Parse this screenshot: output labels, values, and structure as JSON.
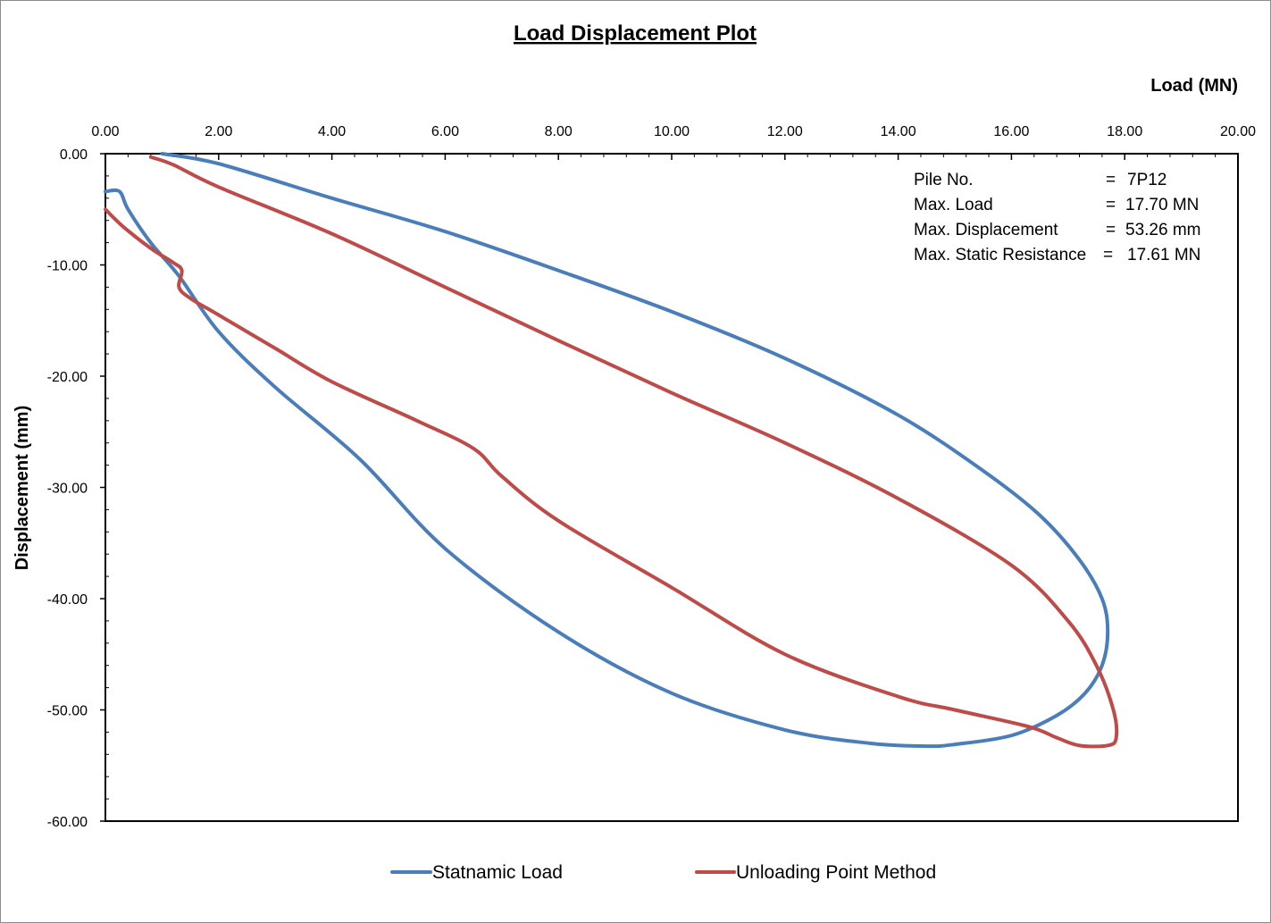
{
  "chart_data": {
    "type": "line",
    "title": "Load Displacement Plot",
    "xlabel": "Load (MN)",
    "ylabel": "Displacement (mm)",
    "xlim": [
      0,
      20
    ],
    "ylim": [
      -60,
      0
    ],
    "x_ticks": [
      "0.00",
      "2.00",
      "4.00",
      "6.00",
      "8.00",
      "10.00",
      "12.00",
      "14.00",
      "16.00",
      "18.00",
      "20.00"
    ],
    "y_ticks": [
      "0.00",
      "-10.00",
      "-20.00",
      "-30.00",
      "-40.00",
      "-50.00",
      "-60.00"
    ],
    "x_tick_values": [
      0,
      2,
      4,
      6,
      8,
      10,
      12,
      14,
      16,
      18,
      20
    ],
    "y_tick_values": [
      0,
      -10,
      -20,
      -30,
      -40,
      -50,
      -60
    ],
    "grid": false,
    "legend_position": "bottom",
    "info_box": [
      {
        "label": "Pile No.",
        "sep": "=",
        "value": "7P12"
      },
      {
        "label": "Max. Load",
        "sep": "=",
        "value": "17.70 MN"
      },
      {
        "label": "Max. Displacement",
        "sep": "=",
        "value": "53.26 mm"
      },
      {
        "label": "Max. Static Resistance",
        "sep": "=",
        "value": "17.61 MN"
      }
    ],
    "series": [
      {
        "name": "Statnamic Load",
        "color": "#4a7ebb",
        "points": [
          [
            1.0,
            0.0
          ],
          [
            2.0,
            -0.9
          ],
          [
            4.0,
            -4.0
          ],
          [
            6.0,
            -7.0
          ],
          [
            8.0,
            -10.5
          ],
          [
            10.0,
            -14.2
          ],
          [
            12.0,
            -18.4
          ],
          [
            14.0,
            -23.5
          ],
          [
            15.5,
            -28.5
          ],
          [
            16.5,
            -32.5
          ],
          [
            17.2,
            -36.5
          ],
          [
            17.6,
            -40.0
          ],
          [
            17.7,
            -43.0
          ],
          [
            17.6,
            -46.0
          ],
          [
            17.3,
            -48.5
          ],
          [
            16.8,
            -50.5
          ],
          [
            16.0,
            -52.3
          ],
          [
            15.0,
            -53.1
          ],
          [
            14.5,
            -53.26
          ],
          [
            13.5,
            -53.0
          ],
          [
            12.0,
            -51.8
          ],
          [
            10.0,
            -48.5
          ],
          [
            8.0,
            -43.0
          ],
          [
            6.0,
            -35.5
          ],
          [
            4.5,
            -27.5
          ],
          [
            3.0,
            -21.0
          ],
          [
            2.0,
            -16.0
          ],
          [
            1.3,
            -11.0
          ],
          [
            0.8,
            -8.0
          ],
          [
            0.4,
            -5.0
          ],
          [
            0.25,
            -3.4
          ],
          [
            0.0,
            -3.4
          ]
        ]
      },
      {
        "name": "Unloading Point Method",
        "color": "#be4b48",
        "points": [
          [
            0.8,
            -0.3
          ],
          [
            1.2,
            -1.0
          ],
          [
            2.0,
            -3.0
          ],
          [
            4.0,
            -7.2
          ],
          [
            6.0,
            -12.0
          ],
          [
            8.0,
            -16.8
          ],
          [
            10.0,
            -21.5
          ],
          [
            12.0,
            -26.0
          ],
          [
            14.0,
            -31.0
          ],
          [
            16.0,
            -37.0
          ],
          [
            17.0,
            -42.0
          ],
          [
            17.5,
            -46.0
          ],
          [
            17.8,
            -50.0
          ],
          [
            17.85,
            -52.5
          ],
          [
            17.7,
            -53.2
          ],
          [
            17.2,
            -53.2
          ],
          [
            16.8,
            -52.5
          ],
          [
            16.3,
            -51.5
          ],
          [
            15.0,
            -50.0
          ],
          [
            14.0,
            -48.8
          ],
          [
            12.0,
            -45.0
          ],
          [
            10.0,
            -39.0
          ],
          [
            8.0,
            -33.0
          ],
          [
            7.0,
            -29.0
          ],
          [
            6.5,
            -26.5
          ],
          [
            5.5,
            -24.0
          ],
          [
            4.0,
            -20.5
          ],
          [
            3.0,
            -17.5
          ],
          [
            2.0,
            -14.5
          ],
          [
            1.5,
            -13.0
          ],
          [
            1.3,
            -12.0
          ],
          [
            1.35,
            -10.5
          ],
          [
            1.2,
            -9.8
          ],
          [
            0.8,
            -8.5
          ],
          [
            0.3,
            -6.5
          ],
          [
            0.0,
            -5.0
          ]
        ]
      }
    ]
  }
}
